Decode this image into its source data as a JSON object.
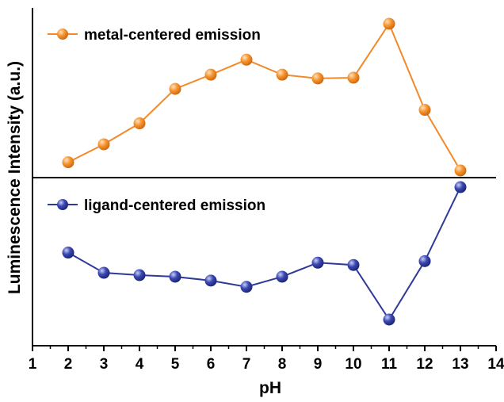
{
  "chart_data": {
    "type": "line",
    "xlabel": "pH",
    "ylabel": "Luminescence Intensity (a.u.)",
    "xlim": [
      1,
      14
    ],
    "x_ticks": [
      "1",
      "2",
      "3",
      "4",
      "5",
      "6",
      "7",
      "8",
      "9",
      "10",
      "11",
      "12",
      "13",
      "14"
    ],
    "grid": false,
    "legend_placement": "top-left of each panel",
    "panels": [
      {
        "name": "metal-centered emission",
        "color": "#F28A2A",
        "marker": "sphere",
        "y_range": [
          0,
          100
        ],
        "x": [
          2,
          3,
          4,
          5,
          6,
          7,
          8,
          9,
          10,
          11,
          12,
          13
        ],
        "values": [
          10.5,
          22.5,
          36.5,
          59.5,
          69,
          79,
          69,
          66.5,
          67,
          103,
          45.5,
          5
        ]
      },
      {
        "name": "ligand-centered emission",
        "color": "#2E3A9A",
        "marker": "sphere",
        "y_range": [
          0,
          100
        ],
        "x": [
          2,
          3,
          4,
          5,
          6,
          7,
          8,
          9,
          10,
          11,
          12,
          13
        ],
        "values": [
          56,
          43,
          41.5,
          40.5,
          38,
          34,
          40.5,
          49.5,
          48,
          13,
          50.5,
          98
        ]
      }
    ]
  }
}
